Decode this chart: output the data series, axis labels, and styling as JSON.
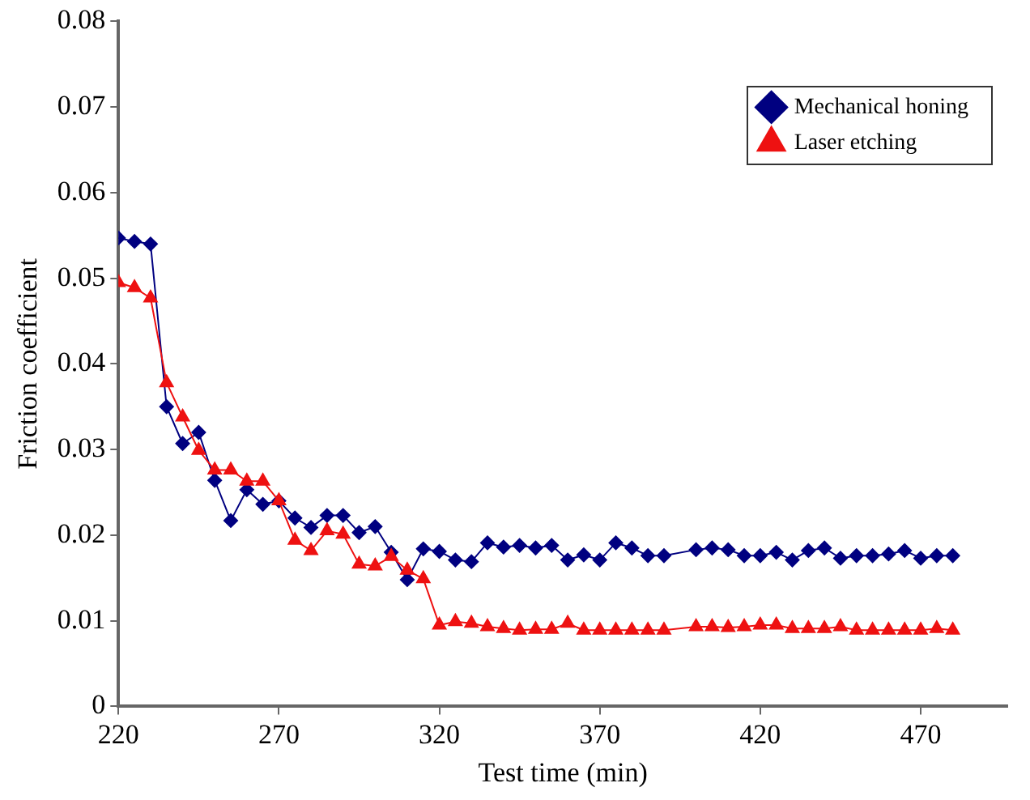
{
  "chart_data": {
    "type": "line",
    "xlabel": "Test time (min)",
    "ylabel": "Friction coefficient",
    "xlim": [
      220,
      497
    ],
    "xticks": [
      220,
      270,
      320,
      370,
      420,
      470
    ],
    "ylim": [
      0,
      0.08
    ],
    "yticks": [
      0,
      0.01,
      0.02,
      0.03,
      0.04,
      0.05,
      0.06,
      0.07,
      0.08
    ],
    "grid": false,
    "legend": "top right",
    "line_style": "solid",
    "series": [
      {
        "name": "Mechanical honing",
        "color": "#000080",
        "marker": "diamond",
        "x": [
          220,
          225,
          230,
          235,
          240,
          245,
          250,
          255,
          260,
          265,
          270,
          275,
          280,
          285,
          290,
          295,
          300,
          305,
          310,
          315,
          320,
          325,
          330,
          335,
          340,
          345,
          350,
          355,
          360,
          365,
          370,
          375,
          380,
          385,
          390,
          400,
          405,
          410,
          415,
          420,
          425,
          430,
          435,
          440,
          445,
          450,
          455,
          460,
          465,
          470,
          475,
          480
        ],
        "values": [
          0.0547,
          0.0543,
          0.054,
          0.035,
          0.0307,
          0.032,
          0.0264,
          0.0217,
          0.0253,
          0.0236,
          0.024,
          0.022,
          0.0209,
          0.0223,
          0.0223,
          0.0203,
          0.021,
          0.018,
          0.0148,
          0.0184,
          0.0181,
          0.0171,
          0.0169,
          0.0191,
          0.0186,
          0.0188,
          0.0185,
          0.0188,
          0.0171,
          0.0177,
          0.0171,
          0.0191,
          0.0185,
          0.0176,
          0.0176,
          0.0183,
          0.0185,
          0.0183,
          0.0176,
          0.0176,
          0.018,
          0.0171,
          0.0182,
          0.0185,
          0.0173,
          0.0176,
          0.0176,
          0.0178,
          0.0182,
          0.0173,
          0.0176,
          0.0176
        ]
      },
      {
        "name": "Laser etching",
        "color": "#ee1111",
        "marker": "triangle",
        "x": [
          220,
          225,
          230,
          235,
          240,
          245,
          250,
          255,
          260,
          265,
          270,
          275,
          280,
          285,
          290,
          295,
          300,
          305,
          310,
          315,
          320,
          325,
          330,
          335,
          340,
          345,
          350,
          355,
          360,
          365,
          370,
          375,
          380,
          385,
          390,
          400,
          405,
          410,
          415,
          420,
          425,
          430,
          435,
          440,
          445,
          450,
          455,
          460,
          465,
          470,
          475,
          480
        ],
        "values": [
          0.0495,
          0.0489,
          0.0477,
          0.0378,
          0.0338,
          0.0299,
          0.0276,
          0.0276,
          0.0263,
          0.0263,
          0.024,
          0.0194,
          0.0182,
          0.0205,
          0.0201,
          0.0166,
          0.0164,
          0.0175,
          0.0159,
          0.0149,
          0.0095,
          0.0099,
          0.0097,
          0.0093,
          0.0091,
          0.0089,
          0.009,
          0.009,
          0.0097,
          0.0089,
          0.0089,
          0.0089,
          0.0089,
          0.0089,
          0.0089,
          0.0093,
          0.0093,
          0.0092,
          0.0093,
          0.0095,
          0.0095,
          0.0091,
          0.0091,
          0.0091,
          0.0093,
          0.0089,
          0.0089,
          0.0089,
          0.0089,
          0.0089,
          0.0091,
          0.0089
        ]
      }
    ]
  }
}
